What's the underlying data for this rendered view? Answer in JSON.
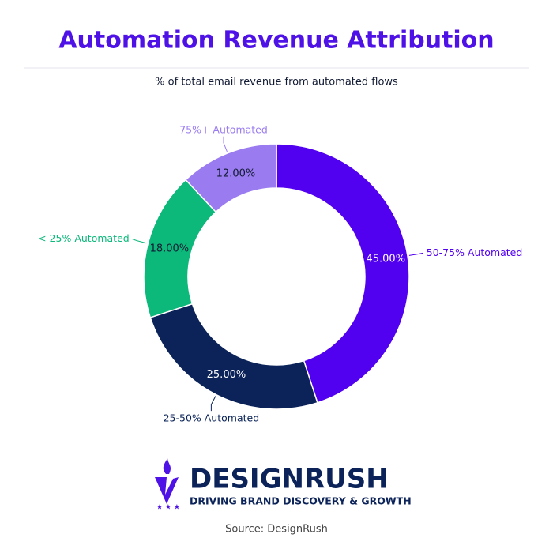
{
  "chart_data": {
    "type": "donut",
    "title": "Automation Revenue Attribution",
    "subtitle": "% of total email revenue from automated flows",
    "categories": [
      "50-75% Automated",
      "25-50% Automated",
      "< 25% Automated",
      "75%+ Automated"
    ],
    "values": [
      45,
      25,
      18,
      12
    ],
    "value_labels": [
      "45.00%",
      "25.00%",
      "18.00%",
      "12.00%"
    ],
    "colors": [
      "#5200f0",
      "#0b2358",
      "#0cb87a",
      "#9a7cf0"
    ]
  },
  "logo": {
    "name": "DESIGNRUSH",
    "tagline": "DRIVING BRAND DISCOVERY & GROWTH"
  },
  "source": "Source: DesignRush"
}
